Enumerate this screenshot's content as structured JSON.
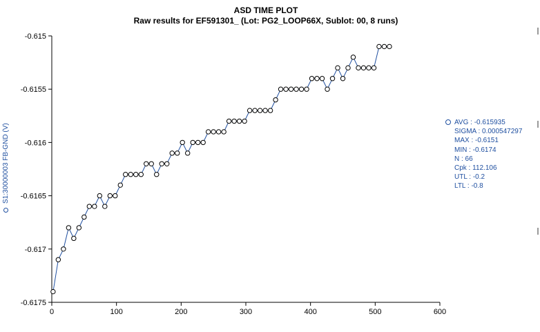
{
  "chart_data": {
    "type": "line",
    "title": "ASD TIME PLOT",
    "subtitle": "Raw results for EF591301_  (Lot: PG2_LOOP66X, Sublot: 00, 8 runs)",
    "ylabel": "S1:30000003   FB-GND (V)",
    "xlabel": "",
    "xlim": [
      0,
      600
    ],
    "ylim": [
      -0.6175,
      -0.615
    ],
    "xticks": [
      0,
      100,
      200,
      300,
      400,
      500,
      600
    ],
    "yticks": [
      -0.6175,
      -0.617,
      -0.6165,
      -0.616,
      -0.6155,
      -0.615
    ],
    "ytick_labels": [
      "-0.6175",
      "-0.617",
      "-0.6165",
      "-0.616",
      "-0.6155",
      "-0.615"
    ],
    "grid": false,
    "series": [
      {
        "x": [
          2,
          10,
          18,
          26,
          34,
          42,
          50,
          58,
          66,
          74,
          82,
          90,
          98,
          106,
          114,
          122,
          130,
          138,
          146,
          154,
          162,
          170,
          178,
          186,
          194,
          202,
          210,
          218,
          226,
          234,
          242,
          250,
          258,
          266,
          274,
          282,
          290,
          298,
          306,
          314,
          322,
          330,
          338,
          346,
          354,
          362,
          370,
          378,
          386,
          394,
          402,
          410,
          418,
          426,
          434,
          442,
          450,
          458,
          466,
          474,
          482,
          490,
          498,
          506,
          514,
          522
        ],
        "y": [
          -0.6174,
          -0.6171,
          -0.617,
          -0.6168,
          -0.6169,
          -0.6168,
          -0.6167,
          -0.6166,
          -0.6166,
          -0.6165,
          -0.6166,
          -0.6165,
          -0.6165,
          -0.6164,
          -0.6163,
          -0.6163,
          -0.6163,
          -0.6163,
          -0.6162,
          -0.6162,
          -0.6163,
          -0.6162,
          -0.6162,
          -0.6161,
          -0.6161,
          -0.616,
          -0.6161,
          -0.616,
          -0.616,
          -0.616,
          -0.6159,
          -0.6159,
          -0.6159,
          -0.6159,
          -0.6158,
          -0.6158,
          -0.6158,
          -0.6158,
          -0.6157,
          -0.6157,
          -0.6157,
          -0.6157,
          -0.6157,
          -0.6156,
          -0.6155,
          -0.6155,
          -0.6155,
          -0.6155,
          -0.6155,
          -0.6155,
          -0.6154,
          -0.6154,
          -0.6154,
          -0.6155,
          -0.6154,
          -0.6153,
          -0.6154,
          -0.6153,
          -0.6152,
          -0.6153,
          -0.6153,
          -0.6153,
          -0.6153,
          -0.6151,
          -0.6151,
          -0.6151
        ],
        "color": "#1f4fa0"
      }
    ],
    "legend_position": "right",
    "stats": [
      "AVG : -0.615935",
      "SIGMA : 0.000547297",
      "MAX : -0.6151",
      "MIN : -0.6174",
      "N : 66",
      "Cpk : 112.106",
      "UTL : -0.2",
      "LTL : -0.8"
    ]
  }
}
